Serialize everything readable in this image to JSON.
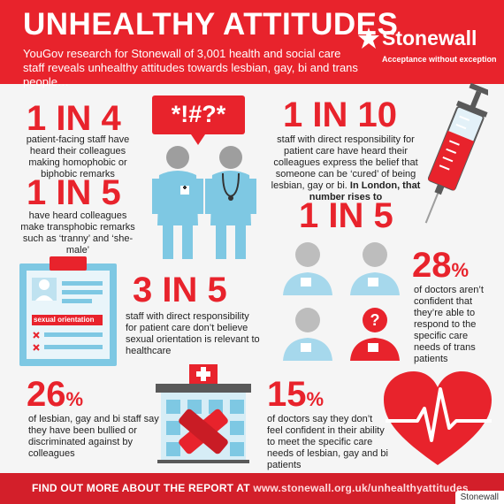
{
  "header": {
    "title": "UNHEALTHY ATTITUDES",
    "subtitle": "YouGov research for Stonewall of 3,001 health and social care staff reveals unhealthy attitudes towards lesbian, gay, bi and trans people…"
  },
  "logo": {
    "name": "Stonewall",
    "tagline": "Acceptance without exception"
  },
  "speech_bubble": "*!#?*",
  "stats": {
    "s1": {
      "figure": "1 IN 4",
      "text": "patient-facing staff have heard their colleagues making homophobic or biphobic remarks"
    },
    "s2": {
      "figure": "1 IN 5",
      "text": "have heard colleagues make transphobic remarks such as ‘tranny’ and ‘she-male’"
    },
    "s3": {
      "figure": "1 IN 10",
      "text": "staff with direct responsibility for patient care have heard their colleagues express the belief that someone can be ‘cured’ of being lesbian, gay or bi.",
      "emph": "In London, that number rises to",
      "figure2": "1 IN 5"
    },
    "s4": {
      "figure": "3 IN 5",
      "text": "staff with direct responsibility for patient care don’t believe sexual orientation is relevant to healthcare"
    },
    "s5": {
      "figure": "28",
      "unit": "%",
      "text": "of doctors aren’t confident that they’re able to respond to the specific care needs of trans patients"
    },
    "s6": {
      "figure": "26",
      "unit": "%",
      "text": "of lesbian, gay and bi staff say they have been bullied or discriminated against by colleagues"
    },
    "s7": {
      "figure": "15",
      "unit": "%",
      "text": "of doctors say they don’t feel confident in their ability to meet the specific care needs of lesbian, gay and bi patients"
    }
  },
  "clipboard_label": "sexual orientation",
  "footer": {
    "cta": "FIND OUT MORE ABOUT THE REPORT AT",
    "url": "www.stonewall.org.uk/unhealthyattitudes"
  },
  "credit": "Stonewall",
  "colors": {
    "red": "#e8232c",
    "dark_red": "#d31f2a",
    "light_blue": "#7ec8e3",
    "grey": "#bdbdbd",
    "dark_grey": "#595959"
  }
}
